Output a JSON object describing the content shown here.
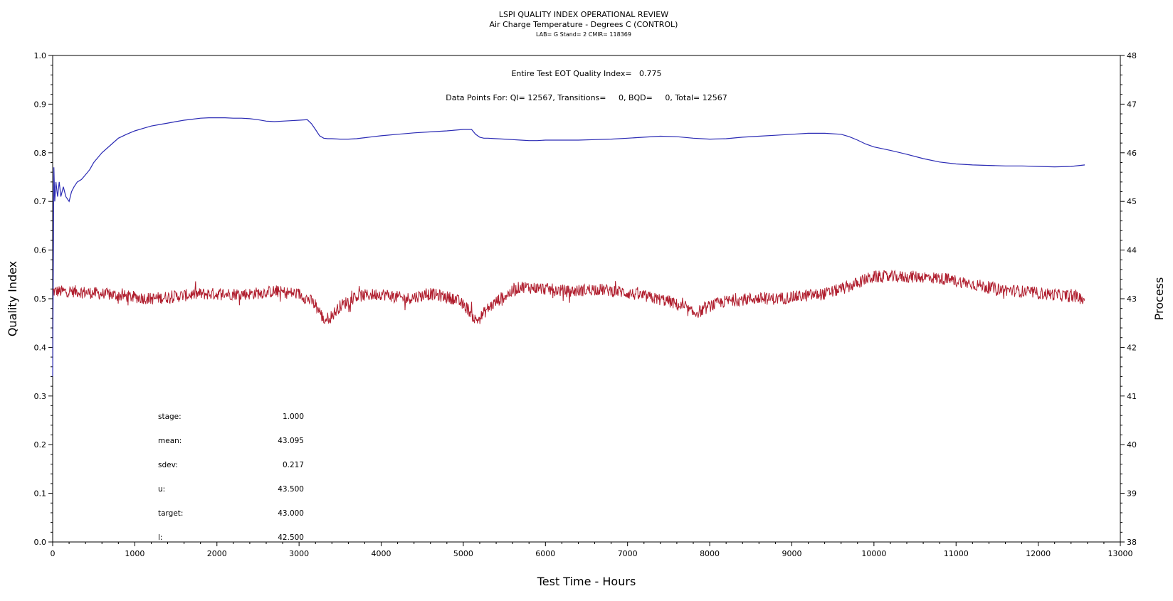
{
  "chart_data": {
    "type": "line",
    "title": "LSPI QUALITY INDEX OPERATIONAL REVIEW",
    "subtitle": "Air Charge Temperature - Degrees C (CONTROL)",
    "subtitle2": "LAB= G Stand= 2 CMIR= 118369",
    "xlabel": "Test Time - Hours",
    "ylabel_left": "Quality Index",
    "ylabel_right": "Process",
    "xlim": [
      0,
      13000
    ],
    "ylim_left": [
      0.0,
      1.0
    ],
    "ylim_right": [
      38,
      48
    ],
    "x_ticks": [
      "0",
      "1000",
      "2000",
      "3000",
      "4000",
      "5000",
      "6000",
      "7000",
      "8000",
      "9000",
      "10000",
      "11000",
      "12000",
      "13000"
    ],
    "y_ticks_left": [
      "0.0",
      "0.1",
      "0.2",
      "0.3",
      "0.4",
      "0.5",
      "0.6",
      "0.7",
      "0.8",
      "0.9",
      "1.0"
    ],
    "y_ticks_right": [
      "38",
      "39",
      "40",
      "41",
      "42",
      "43",
      "44",
      "45",
      "46",
      "47",
      "48"
    ],
    "annotations": {
      "qi_line": "Entire Test EOT Quality Index=   0.775",
      "points_line": "Data Points For: QI= 12567, Transitions=     0, BQD=     0, Total= 12567"
    },
    "stats": [
      {
        "label": "stage:",
        "value": "1.000"
      },
      {
        "label": "mean:",
        "value": "43.095"
      },
      {
        "label": "sdev:",
        "value": "0.217"
      },
      {
        "label": "u:",
        "value": "43.500"
      },
      {
        "label": "target:",
        "value": "43.000"
      },
      {
        "label": "l:",
        "value": "42.500"
      }
    ],
    "series": [
      {
        "axis": "left",
        "color": "#2a2ab4",
        "x": [
          0,
          15,
          25,
          40,
          60,
          80,
          100,
          130,
          160,
          200,
          230,
          260,
          300,
          350,
          400,
          450,
          500,
          600,
          700,
          800,
          900,
          1000,
          1100,
          1200,
          1300,
          1400,
          1500,
          1600,
          1700,
          1800,
          1900,
          2000,
          2100,
          2200,
          2300,
          2400,
          2500,
          2600,
          2700,
          2800,
          2900,
          3000,
          3100,
          3150,
          3200,
          3250,
          3300,
          3350,
          3400,
          3500,
          3600,
          3700,
          3800,
          3900,
          4000,
          4200,
          4400,
          4600,
          4800,
          5000,
          5100,
          5150,
          5200,
          5250,
          5300,
          5400,
          5500,
          5600,
          5700,
          5800,
          5900,
          6000,
          6200,
          6400,
          6600,
          6800,
          7000,
          7200,
          7400,
          7600,
          7800,
          8000,
          8200,
          8400,
          8600,
          8800,
          9000,
          9200,
          9400,
          9600,
          9700,
          9800,
          9900,
          10000,
          10200,
          10400,
          10600,
          10800,
          11000,
          11200,
          11400,
          11600,
          11800,
          12000,
          12200,
          12400,
          12567
        ],
        "y": [
          0.34,
          0.77,
          0.7,
          0.74,
          0.71,
          0.74,
          0.71,
          0.73,
          0.71,
          0.7,
          0.72,
          0.73,
          0.74,
          0.745,
          0.755,
          0.765,
          0.78,
          0.8,
          0.815,
          0.83,
          0.838,
          0.845,
          0.85,
          0.855,
          0.858,
          0.861,
          0.864,
          0.867,
          0.869,
          0.871,
          0.872,
          0.872,
          0.872,
          0.871,
          0.871,
          0.87,
          0.868,
          0.865,
          0.864,
          0.865,
          0.866,
          0.867,
          0.868,
          0.86,
          0.848,
          0.835,
          0.83,
          0.829,
          0.829,
          0.828,
          0.828,
          0.829,
          0.831,
          0.833,
          0.835,
          0.838,
          0.841,
          0.843,
          0.845,
          0.848,
          0.848,
          0.838,
          0.832,
          0.83,
          0.83,
          0.829,
          0.828,
          0.827,
          0.826,
          0.825,
          0.825,
          0.826,
          0.826,
          0.826,
          0.827,
          0.828,
          0.83,
          0.832,
          0.834,
          0.833,
          0.83,
          0.828,
          0.829,
          0.832,
          0.834,
          0.836,
          0.838,
          0.84,
          0.84,
          0.838,
          0.833,
          0.826,
          0.818,
          0.812,
          0.805,
          0.797,
          0.788,
          0.781,
          0.777,
          0.775,
          0.774,
          0.773,
          0.773,
          0.772,
          0.771,
          0.772,
          0.775
        ]
      },
      {
        "axis": "right",
        "color": "#b01e2e",
        "noise_amplitude": 0.23,
        "x": [
          0,
          300,
          600,
          900,
          1200,
          1500,
          1800,
          2100,
          2400,
          2700,
          3000,
          3150,
          3250,
          3300,
          3400,
          3500,
          3700,
          4000,
          4300,
          4600,
          4900,
          5050,
          5150,
          5200,
          5300,
          5450,
          5700,
          6000,
          6300,
          6600,
          6900,
          7200,
          7500,
          7700,
          7800,
          7900,
          8000,
          8200,
          8500,
          8800,
          9100,
          9400,
          9700,
          9900,
          10000,
          10300,
          10600,
          10900,
          11200,
          11500,
          11800,
          12100,
          12400,
          12567
        ],
        "y": [
          43.15,
          43.15,
          43.1,
          43.05,
          43.0,
          43.05,
          43.1,
          43.1,
          43.1,
          43.15,
          43.1,
          42.95,
          42.75,
          42.55,
          42.65,
          42.85,
          43.05,
          43.1,
          43.0,
          43.1,
          43.0,
          42.8,
          42.55,
          42.6,
          42.8,
          43.0,
          43.25,
          43.2,
          43.15,
          43.2,
          43.15,
          43.05,
          42.95,
          42.8,
          42.7,
          42.75,
          42.85,
          42.95,
          43.0,
          43.0,
          43.05,
          43.1,
          43.25,
          43.4,
          43.45,
          43.45,
          43.45,
          43.4,
          43.3,
          43.2,
          43.15,
          43.1,
          43.05,
          43.0
        ]
      }
    ],
    "grid": false
  }
}
